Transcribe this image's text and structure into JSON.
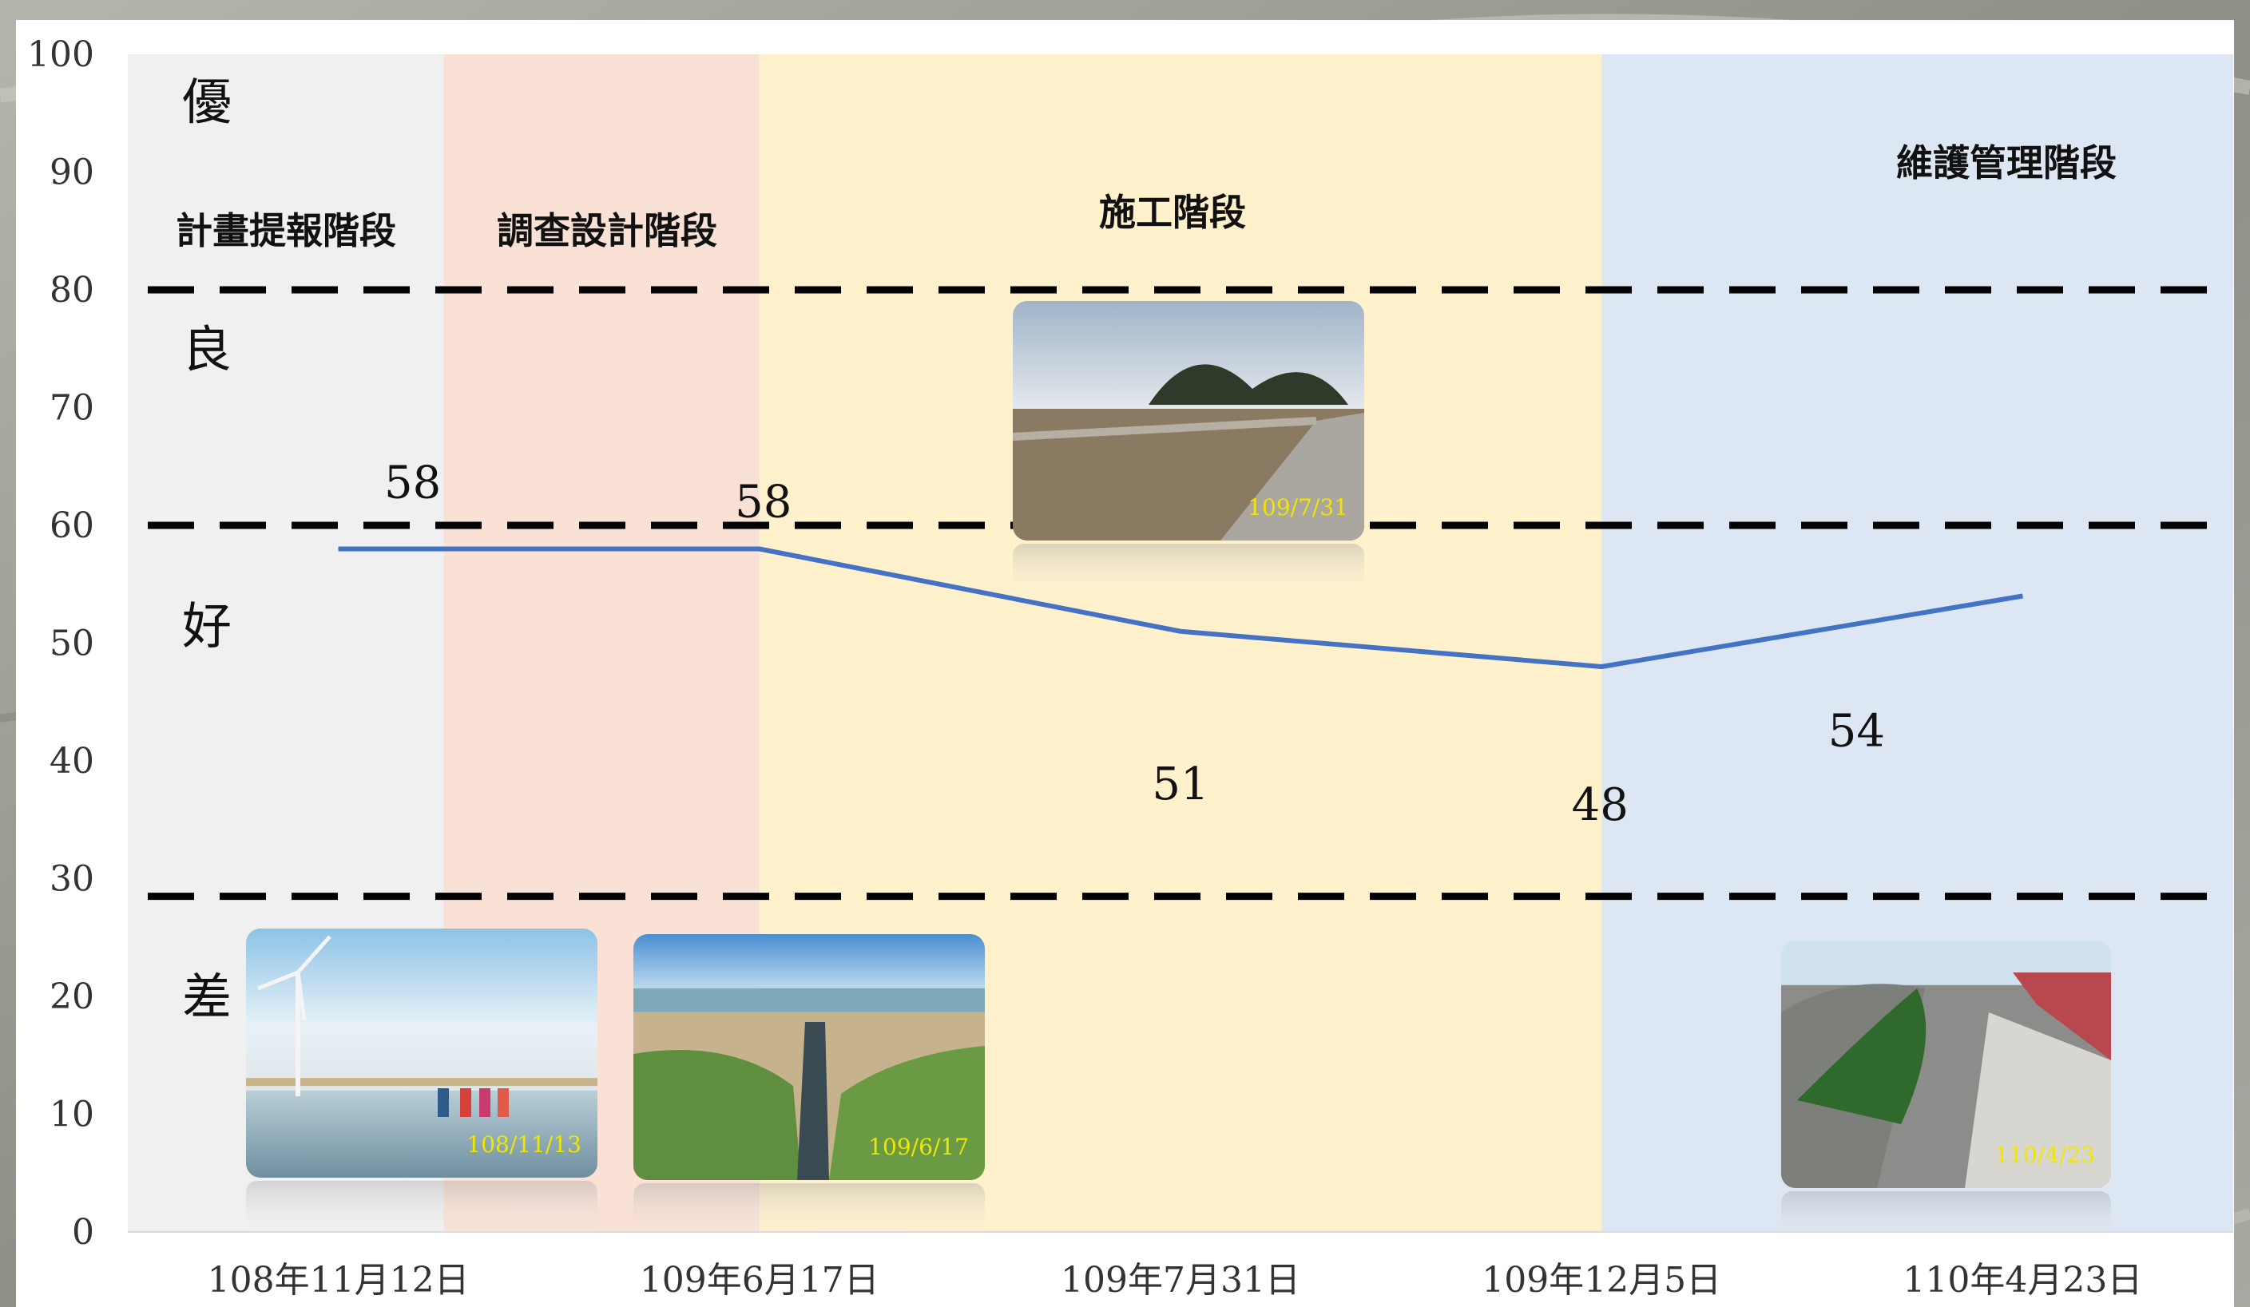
{
  "chart_data": {
    "type": "line",
    "title": "",
    "xlabel": "",
    "ylabel": "",
    "ylim": [
      0,
      100
    ],
    "yticks": [
      0,
      10,
      20,
      30,
      40,
      50,
      60,
      70,
      80,
      90,
      100
    ],
    "categories": [
      "108年11月12日",
      "109年6月17日",
      "109年7月31日",
      "109年12月5日",
      "110年4月23日"
    ],
    "series": [
      {
        "values": [
          58,
          58,
          51,
          48,
          54
        ],
        "color": "#4472C4"
      }
    ],
    "data_labels": [
      "58",
      "58",
      "51",
      "48",
      "54"
    ],
    "threshold_lines": [
      80,
      60,
      28.5
    ],
    "grade_bands": [
      {
        "label": "優",
        "y": 96
      },
      {
        "label": "良",
        "y": 75
      },
      {
        "label": "好",
        "y": 51.5
      },
      {
        "label": "差",
        "y": 20
      }
    ],
    "stages": [
      {
        "label": "計畫提報階段",
        "x_start": -0.5,
        "x_end": 0.25,
        "color": "#f0f0f0"
      },
      {
        "label": "調查設計階段",
        "x_start": 0.25,
        "x_end": 1.0,
        "color": "#f9e1d6"
      },
      {
        "label": "施工階段",
        "x_start": 1.0,
        "x_end": 3.0,
        "color": "#fff1cc"
      },
      {
        "label": "維護管理階段",
        "x_start": 3.0,
        "x_end": 4.5,
        "color": "#dde7f3"
      }
    ],
    "grid": false,
    "legend": "none",
    "photos": [
      {
        "date": "108/11/13",
        "scene": "wind-turbine-beach"
      },
      {
        "date": "109/6/17",
        "scene": "coastal-stream"
      },
      {
        "date": "109/7/31",
        "scene": "construction-embankment"
      },
      {
        "date": "110/4/23",
        "scene": "finished-path"
      }
    ]
  }
}
